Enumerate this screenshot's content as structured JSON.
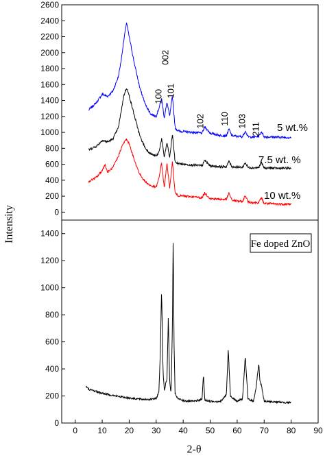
{
  "chart_data": [
    {
      "type": "line",
      "panel": "top",
      "ylim": [
        -100,
        2600
      ],
      "y_ticks": [
        0,
        200,
        400,
        600,
        800,
        1000,
        1200,
        1400,
        1600,
        1800,
        2000,
        2200,
        2400,
        2600
      ],
      "xlim": [
        -5,
        90
      ],
      "peak_labels": [
        {
          "text": "100",
          "x": 32,
          "y": 1450
        },
        {
          "text": "002",
          "x": 34.5,
          "y": 1940
        },
        {
          "text": "101",
          "x": 36.5,
          "y": 1520
        },
        {
          "text": "102",
          "x": 47.5,
          "y": 1140
        },
        {
          "text": "110",
          "x": 56.5,
          "y": 1170
        },
        {
          "text": "103",
          "x": 63,
          "y": 1140
        },
        {
          "text": "211",
          "x": 68,
          "y": 1040
        }
      ],
      "series": [
        {
          "name": "5 wt.%",
          "color": "#0000ff",
          "x": [
            5,
            8,
            10,
            12,
            14,
            16,
            17,
            18,
            19,
            20,
            22,
            24,
            26,
            28,
            30,
            31,
            32,
            33,
            34,
            35,
            36,
            37,
            38,
            40,
            44,
            47,
            48,
            50,
            54,
            56,
            57,
            58,
            60,
            62,
            63,
            64,
            66,
            68,
            69,
            70,
            75,
            80
          ],
          "y": [
            1280,
            1380,
            1480,
            1450,
            1520,
            1700,
            1900,
            2150,
            2380,
            2200,
            1850,
            1550,
            1350,
            1230,
            1200,
            1300,
            1420,
            1180,
            1380,
            1200,
            1460,
            1060,
            1020,
            1010,
            1000,
            990,
            1070,
            990,
            960,
            960,
            1040,
            960,
            950,
            945,
            1020,
            945,
            940,
            950,
            1010,
            945,
            940,
            935
          ]
        },
        {
          "name": "7.5 wt. %",
          "color": "#000000",
          "x": [
            5,
            8,
            10,
            12,
            14,
            16,
            17,
            18,
            19,
            20,
            22,
            24,
            26,
            28,
            30,
            31,
            32,
            33,
            34,
            35,
            36,
            37,
            38,
            40,
            44,
            47,
            48,
            50,
            54,
            56,
            57,
            58,
            60,
            62,
            63,
            64,
            66,
            68,
            69,
            70,
            75,
            80
          ],
          "y": [
            780,
            830,
            900,
            880,
            920,
            1060,
            1260,
            1460,
            1560,
            1460,
            1200,
            950,
            800,
            730,
            700,
            750,
            920,
            690,
            870,
            680,
            980,
            630,
            610,
            600,
            590,
            580,
            650,
            580,
            570,
            570,
            640,
            570,
            565,
            560,
            620,
            560,
            555,
            560,
            620,
            555,
            550,
            550
          ]
        },
        {
          "name": "10 wt.%",
          "color": "#ff0000",
          "x": [
            5,
            8,
            10,
            11,
            12,
            14,
            16,
            17,
            18,
            19,
            20,
            22,
            24,
            26,
            28,
            30,
            31,
            32,
            33,
            34,
            35,
            36,
            37,
            38,
            40,
            44,
            47,
            48,
            50,
            54,
            56,
            57,
            58,
            60,
            62,
            63,
            64,
            66,
            68,
            69,
            70,
            75,
            80
          ],
          "y": [
            380,
            440,
            520,
            600,
            500,
            560,
            700,
            800,
            870,
            910,
            860,
            640,
            470,
            380,
            330,
            310,
            420,
            620,
            300,
            620,
            290,
            640,
            240,
            210,
            200,
            190,
            180,
            240,
            170,
            160,
            160,
            240,
            150,
            140,
            130,
            210,
            130,
            120,
            120,
            180,
            110,
            100,
            100
          ]
        }
      ]
    },
    {
      "type": "line",
      "panel": "bottom",
      "title_box": "Fe doped ZnO",
      "xlabel": "2-θ",
      "ylabel": "Intensity",
      "xlim": [
        -5,
        90
      ],
      "ylim": [
        0,
        1500
      ],
      "x_ticks": [
        0,
        10,
        20,
        30,
        40,
        50,
        60,
        70,
        80,
        90
      ],
      "y_ticks": [
        0,
        200,
        400,
        600,
        800,
        1000,
        1200,
        1400
      ],
      "series": [
        {
          "name": "",
          "color": "#000000",
          "x": [
            4,
            5,
            10,
            15,
            20,
            25,
            28,
            30,
            31,
            31.5,
            32,
            32.5,
            33,
            34,
            34.5,
            35,
            35.5,
            36,
            36.3,
            36.6,
            37,
            38,
            40,
            44,
            47,
            47.5,
            48,
            50,
            54,
            56,
            56.7,
            57.5,
            60,
            62,
            63,
            64,
            66,
            67,
            68,
            68.5,
            69,
            70,
            75,
            80
          ],
          "y": [
            270,
            250,
            220,
            200,
            185,
            175,
            175,
            180,
            230,
            500,
            990,
            400,
            240,
            330,
            790,
            300,
            220,
            700,
            1380,
            600,
            220,
            180,
            165,
            160,
            175,
            360,
            170,
            160,
            160,
            210,
            545,
            200,
            160,
            180,
            490,
            180,
            160,
            260,
            440,
            300,
            280,
            160,
            155,
            150
          ]
        }
      ]
    }
  ]
}
